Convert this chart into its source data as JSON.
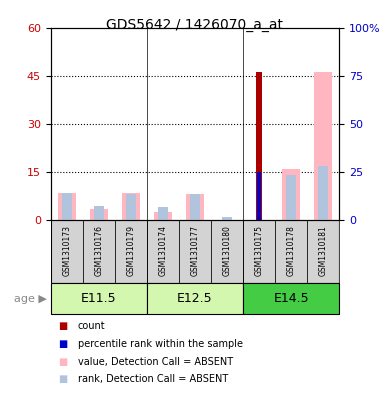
{
  "title": "GDS5642 / 1426070_a_at",
  "samples": [
    "GSM1310173",
    "GSM1310176",
    "GSM1310179",
    "GSM1310174",
    "GSM1310177",
    "GSM1310180",
    "GSM1310175",
    "GSM1310178",
    "GSM1310181"
  ],
  "groups": [
    {
      "label": "E11.5",
      "indices": [
        0,
        1,
        2
      ],
      "color": "#c8f0a0"
    },
    {
      "label": "E12.5",
      "indices": [
        3,
        4,
        5
      ],
      "color": "#c8f0a0"
    },
    {
      "label": "E14.5",
      "indices": [
        6,
        7,
        8
      ],
      "color": "#44cc44"
    }
  ],
  "count_values": [
    0,
    0,
    0,
    0,
    0,
    0,
    46,
    0,
    0
  ],
  "percentile_values": [
    0,
    0,
    0,
    0,
    0,
    0,
    25,
    0,
    0
  ],
  "absent_value_values": [
    8.5,
    3.5,
    8.5,
    2.5,
    8,
    0,
    0,
    16,
    46
  ],
  "absent_rank_values": [
    8.5,
    4.5,
    8,
    4,
    8,
    1,
    0,
    14,
    17
  ],
  "ylim_left": [
    0,
    60
  ],
  "ylim_right": [
    0,
    100
  ],
  "yticks_left": [
    0,
    15,
    30,
    45,
    60
  ],
  "yticks_right": [
    0,
    25,
    50,
    75,
    100
  ],
  "left_axis_color": "#cc0000",
  "right_axis_color": "#0000cc",
  "count_color": "#aa0000",
  "percentile_color": "#0000cc",
  "absent_value_color": "#ffb6c1",
  "absent_rank_color": "#b0c4de",
  "sample_box_color": "#d3d3d3",
  "group_dividers": [
    3,
    6
  ],
  "legend_items": [
    {
      "color": "#aa0000",
      "label": "count"
    },
    {
      "color": "#0000cc",
      "label": "percentile rank within the sample"
    },
    {
      "color": "#ffb6c1",
      "label": "value, Detection Call = ABSENT"
    },
    {
      "color": "#b0c4de",
      "label": "rank, Detection Call = ABSENT"
    }
  ],
  "age_label": "age",
  "figsize": [
    3.9,
    3.93
  ],
  "dpi": 100
}
